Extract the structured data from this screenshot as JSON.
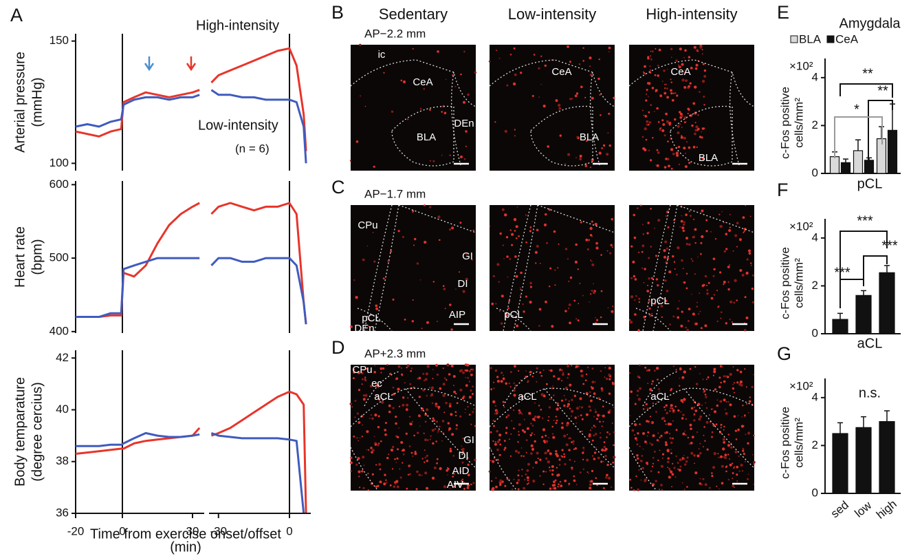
{
  "panel_labels": [
    "A",
    "B",
    "C",
    "D",
    "E",
    "F",
    "G"
  ],
  "chart_data": [
    {
      "type": "line",
      "ylabel": [
        "Arterial pressure",
        "(mmHg)"
      ],
      "ylim": [
        97,
        153
      ],
      "yticks": [
        100,
        150
      ],
      "annotations": [
        "(n = 6)"
      ],
      "panels": [
        {
          "xlim": [
            -20,
            35
          ],
          "vline": 0,
          "x": [
            -20,
            -15,
            -10,
            -5,
            -0.5,
            0.5,
            5,
            10,
            15,
            20,
            25,
            30,
            33
          ],
          "series": [
            {
              "name": "High-intensity",
              "color": "#e8342a",
              "values": [
                113,
                112,
                111,
                113,
                114,
                125,
                127,
                129,
                128,
                127,
                128,
                129,
                130
              ]
            },
            {
              "name": "Low-intensity",
              "color": "#3f5bbf",
              "values": [
                115,
                116,
                115,
                117,
                118,
                124,
                126,
                127,
                127,
                126,
                127,
                127,
                128
              ]
            }
          ]
        },
        {
          "xlim": [
            -34,
            9
          ],
          "vline": 0,
          "x": [
            -33,
            -30,
            -25,
            -20,
            -15,
            -10,
            -5,
            0,
            3,
            6,
            7
          ],
          "series": [
            {
              "color": "#e8342a",
              "values": [
                133,
                136,
                138,
                140,
                142,
                144,
                146,
                147,
                140,
                120,
                105
              ]
            },
            {
              "color": "#3f5bbf",
              "values": [
                130,
                128,
                128,
                127,
                127,
                126,
                126,
                126,
                125,
                115,
                100
              ]
            }
          ]
        }
      ]
    },
    {
      "type": "line",
      "ylabel": [
        "Heart rate",
        "(bpm)"
      ],
      "ylim": [
        398,
        605
      ],
      "yticks": [
        400,
        500,
        600
      ],
      "panels": [
        {
          "xlim": [
            -20,
            35
          ],
          "vline": 0,
          "x": [
            -20,
            -15,
            -10,
            -5,
            -0.5,
            0.5,
            5,
            10,
            15,
            20,
            25,
            30,
            33
          ],
          "series": [
            {
              "color": "#e8342a",
              "values": [
                420,
                420,
                420,
                422,
                422,
                480,
                475,
                490,
                520,
                545,
                560,
                570,
                575
              ]
            },
            {
              "color": "#3f5bbf",
              "values": [
                420,
                420,
                420,
                425,
                425,
                485,
                490,
                495,
                500,
                500,
                500,
                500,
                500
              ]
            }
          ]
        },
        {
          "xlim": [
            -34,
            9
          ],
          "vline": 0,
          "x": [
            -33,
            -30,
            -25,
            -20,
            -15,
            -10,
            -5,
            0,
            3,
            6,
            7
          ],
          "series": [
            {
              "color": "#e8342a",
              "values": [
                560,
                570,
                575,
                570,
                565,
                570,
                570,
                575,
                560,
                440,
                410
              ]
            },
            {
              "color": "#3f5bbf",
              "values": [
                490,
                500,
                500,
                495,
                495,
                500,
                500,
                500,
                490,
                440,
                410
              ]
            }
          ]
        }
      ]
    },
    {
      "type": "line",
      "ylabel": [
        "Body temparature",
        "(degree cercius)"
      ],
      "ylim": [
        36,
        42.3
      ],
      "yticks": [
        36,
        38,
        40,
        42
      ],
      "xlabel": [
        "Time from exercise onset/offset",
        "(min)"
      ],
      "panels": [
        {
          "xlim": [
            -20,
            35
          ],
          "vline": 0,
          "xticks": [
            -20,
            0,
            30
          ],
          "x": [
            -20,
            -15,
            -10,
            -5,
            -0.5,
            0.5,
            5,
            10,
            15,
            20,
            25,
            30,
            33
          ],
          "series": [
            {
              "color": "#e8342a",
              "values": [
                38.3,
                38.35,
                38.4,
                38.45,
                38.5,
                38.5,
                38.7,
                38.8,
                38.85,
                38.9,
                38.95,
                39.0,
                39.3
              ]
            },
            {
              "color": "#3f5bbf",
              "values": [
                38.6,
                38.6,
                38.6,
                38.65,
                38.65,
                38.7,
                38.9,
                39.1,
                39.0,
                38.95,
                38.95,
                39.0,
                39.05
              ]
            }
          ]
        },
        {
          "xlim": [
            -34,
            9
          ],
          "vline": 0,
          "xticks": [
            -30,
            0
          ],
          "x": [
            -33,
            -30,
            -25,
            -20,
            -15,
            -10,
            -5,
            0,
            3,
            6,
            7
          ],
          "series": [
            {
              "color": "#e8342a",
              "values": [
                39.0,
                39.1,
                39.3,
                39.6,
                39.9,
                40.2,
                40.5,
                40.7,
                40.6,
                40.2,
                36.0
              ]
            },
            {
              "color": "#3f5bbf",
              "values": [
                39.1,
                39.0,
                38.95,
                38.9,
                38.9,
                38.9,
                38.9,
                38.85,
                38.8,
                36.0,
                null
              ]
            }
          ]
        }
      ]
    },
    {
      "type": "bar",
      "title": "Amygdala",
      "y_multiplier": "×10²",
      "ylabel": [
        "c-Fos positive",
        "cells/mm²"
      ],
      "ylim": [
        0,
        4.8
      ],
      "yticks": [
        0,
        2,
        4
      ],
      "annotations": [
        "**",
        "**",
        "*"
      ],
      "series": [
        {
          "name": "BLA",
          "color": "#d9d9d9",
          "values": [
            0.7,
            0.95,
            1.45
          ],
          "errors": [
            0.2,
            0.45,
            0.5
          ]
        },
        {
          "name": "CeA",
          "color": "#111111",
          "values": [
            0.45,
            0.55,
            1.8
          ],
          "errors": [
            0.15,
            0.1,
            1.1
          ]
        }
      ]
    },
    {
      "type": "bar",
      "title": "pCL",
      "y_multiplier": "×10²",
      "ylabel": [
        "c-Fos positive",
        "cells/mm²"
      ],
      "ylim": [
        0,
        4.8
      ],
      "yticks": [
        0,
        2,
        4
      ],
      "annotations": [
        "***",
        "***",
        "***"
      ],
      "series": [
        {
          "color": "#111111",
          "values": [
            0.6,
            1.6,
            2.55
          ],
          "errors": [
            0.25,
            0.2,
            0.3
          ]
        }
      ]
    },
    {
      "type": "bar",
      "title": "aCL",
      "y_multiplier": "×10²",
      "ylabel": [
        "c-Fos positive",
        "cells/mm²"
      ],
      "ylim": [
        0,
        4.8
      ],
      "yticks": [
        0,
        2,
        4
      ],
      "annotations": [
        "n.s."
      ],
      "categories": [
        "sed",
        "low",
        "high"
      ],
      "series": [
        {
          "color": "#111111",
          "values": [
            2.5,
            2.75,
            3.0
          ],
          "errors": [
            0.45,
            0.45,
            0.45
          ]
        }
      ]
    }
  ],
  "micrographs": {
    "columns": [
      "Sedentary",
      "Low-intensity",
      "High-intensity"
    ],
    "rows": [
      {
        "section": "AP−2.2 mm",
        "regions": [
          [
            "ic",
            "CeA",
            "BLA",
            "DEn"
          ],
          [
            "CeA",
            "BLA"
          ],
          [
            "CeA",
            "BLA"
          ]
        ]
      },
      {
        "section": "AP−1.7 mm",
        "regions": [
          [
            "CPu",
            "GI",
            "DI",
            "pCL",
            "AIP",
            "DEn"
          ],
          [
            "pCL"
          ],
          [
            "pCL"
          ]
        ]
      },
      {
        "section": "AP+2.3 mm",
        "regions": [
          [
            "CPu",
            "ec",
            "aCL",
            "GI",
            "DI",
            "AID",
            "AIV"
          ],
          [
            "aCL"
          ],
          [
            "aCL"
          ]
        ]
      }
    ]
  }
}
